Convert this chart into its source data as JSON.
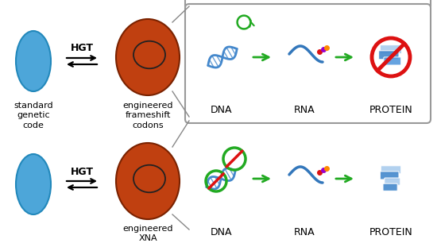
{
  "bg_color": "#ffffff",
  "cell_blue_color": "#4da6d9",
  "cell_blue_edge": "#2288bb",
  "cell_brown_color": "#c04010",
  "cell_inner_color": "#c85020",
  "cell_inner_edge": "#333333",
  "green_arrow_color": "#22aa22",
  "green_curl_color": "#22aa22",
  "dna_color": "#4488cc",
  "rna_color": "#3377bb",
  "no_circle_color": "#dd1111",
  "protein_color": "#4488cc",
  "protein_face_light": "#aaccee",
  "box_edge": "#999999",
  "label_top_left": "standard\ngenetic\ncode",
  "label_top_cell": "engineered\nframeshift\ncodons",
  "label_bot_cell": "engineered\nXNA",
  "hgt_label": "HGT",
  "dna_label": "DNA",
  "rna_label": "RNA",
  "protein_label": "PROTEIN",
  "dot_red": "#dd1111",
  "dot_orange": "#ff8800",
  "dot_purple": "#9900cc",
  "dot_green": "#22aa22"
}
